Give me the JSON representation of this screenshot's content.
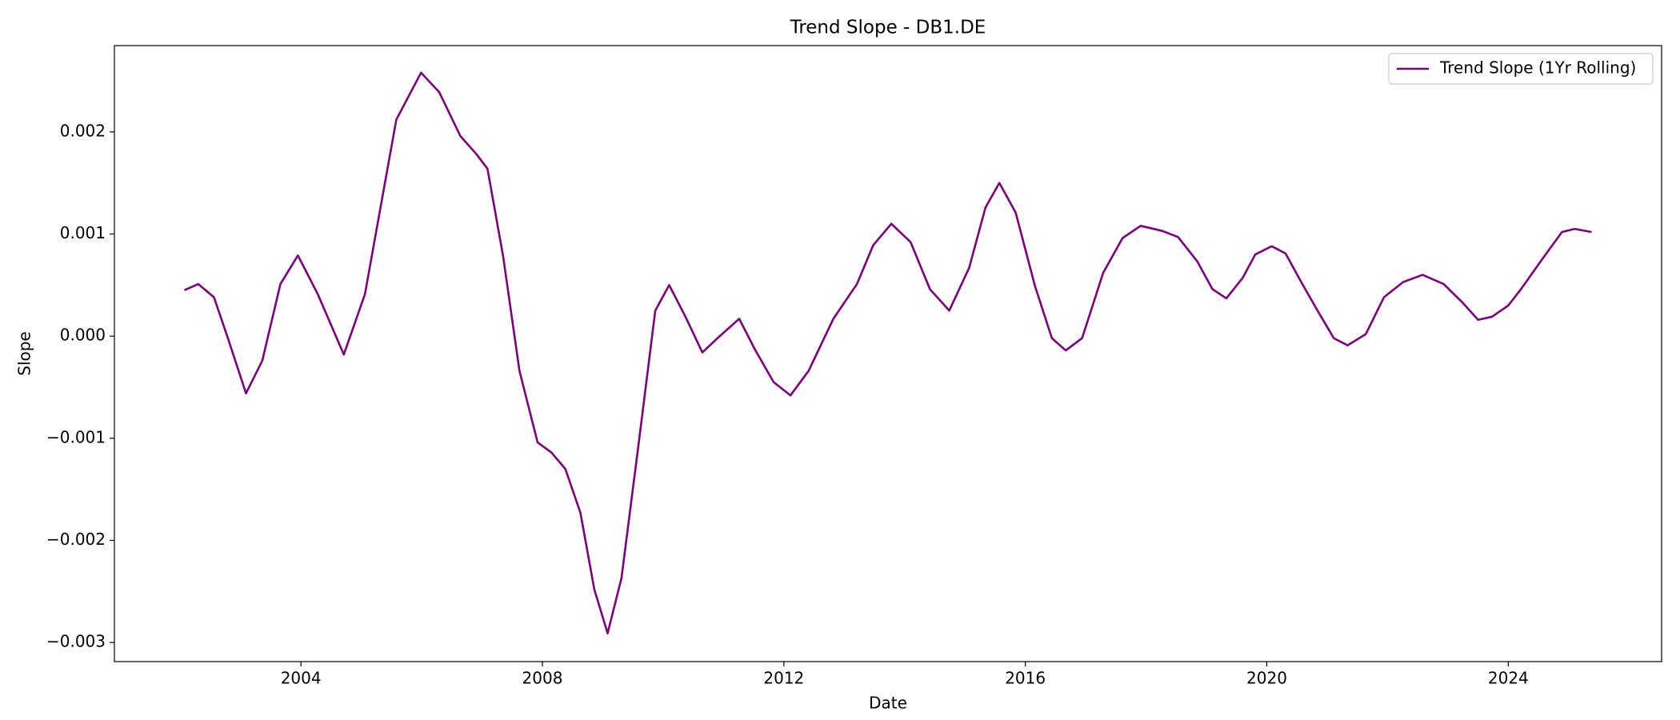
{
  "chart_data": {
    "type": "line",
    "title": "Trend Slope - DB1.DE",
    "x_label": "Date",
    "y_label": "Slope",
    "x": [
      2002.07,
      2002.3,
      2002.56,
      2002.79,
      2003.09,
      2003.36,
      2003.66,
      2003.95,
      2004.28,
      2004.71,
      2005.06,
      2005.58,
      2005.99,
      2006.29,
      2006.64,
      2006.91,
      2007.09,
      2007.35,
      2007.62,
      2007.92,
      2008.15,
      2008.38,
      2008.63,
      2008.86,
      2009.08,
      2009.31,
      2009.61,
      2009.87,
      2010.1,
      2010.37,
      2010.65,
      2010.9,
      2011.26,
      2011.52,
      2011.83,
      2012.11,
      2012.41,
      2012.82,
      2013.21,
      2013.48,
      2013.78,
      2014.1,
      2014.42,
      2014.74,
      2015.07,
      2015.34,
      2015.57,
      2015.84,
      2016.16,
      2016.44,
      2016.67,
      2016.94,
      2017.29,
      2017.61,
      2017.91,
      2018.27,
      2018.53,
      2018.85,
      2019.1,
      2019.33,
      2019.6,
      2019.81,
      2020.08,
      2020.31,
      2020.57,
      2020.84,
      2021.11,
      2021.34,
      2021.64,
      2021.94,
      2022.26,
      2022.58,
      2022.93,
      2023.24,
      2023.5,
      2023.73,
      2024.0,
      2024.21,
      2024.57,
      2024.89,
      2025.1,
      2025.38
    ],
    "series": [
      {
        "name": "Trend Slope (1Yr Rolling)",
        "color": "#800080",
        "values": [
          0.00045,
          0.00051,
          0.00038,
          -2e-05,
          -0.00056,
          -0.00024,
          0.00051,
          0.00079,
          0.00041,
          -0.00018,
          0.00041,
          0.00212,
          0.00258,
          0.00239,
          0.00196,
          0.00178,
          0.00164,
          0.00078,
          -0.00034,
          -0.00104,
          -0.00114,
          -0.0013,
          -0.00173,
          -0.00248,
          -0.00291,
          -0.00237,
          -0.00098,
          0.00025,
          0.0005,
          0.00019,
          -0.00016,
          -2e-05,
          0.00017,
          -0.00013,
          -0.00045,
          -0.00058,
          -0.00034,
          0.00017,
          0.00051,
          0.00089,
          0.0011,
          0.00092,
          0.00046,
          0.00025,
          0.00067,
          0.00126,
          0.0015,
          0.00121,
          0.00049,
          -2e-05,
          -0.00014,
          -2e-05,
          0.00062,
          0.00096,
          0.00108,
          0.00103,
          0.00097,
          0.00073,
          0.00046,
          0.00037,
          0.00057,
          0.0008,
          0.00088,
          0.00081,
          0.00053,
          0.00025,
          -2e-05,
          -9e-05,
          2e-05,
          0.00038,
          0.00053,
          0.0006,
          0.00051,
          0.00033,
          0.00016,
          0.00019,
          0.0003,
          0.00046,
          0.00076,
          0.00102,
          0.00105,
          0.00102
        ]
      }
    ],
    "xlim": [
      2000.91,
      2026.54
    ],
    "xticks": [
      2004,
      2008,
      2012,
      2016,
      2020,
      2024
    ],
    "ylim": [
      -0.003187,
      0.002845
    ],
    "yticks": [
      {
        "value": -0.003,
        "label": "−0.003"
      },
      {
        "value": -0.002,
        "label": "−0.002"
      },
      {
        "value": -0.001,
        "label": "−0.001"
      },
      {
        "value": 0,
        "label": "0.000"
      },
      0.001,
      0.002
    ],
    "legend": "upper right",
    "grid": false
  }
}
